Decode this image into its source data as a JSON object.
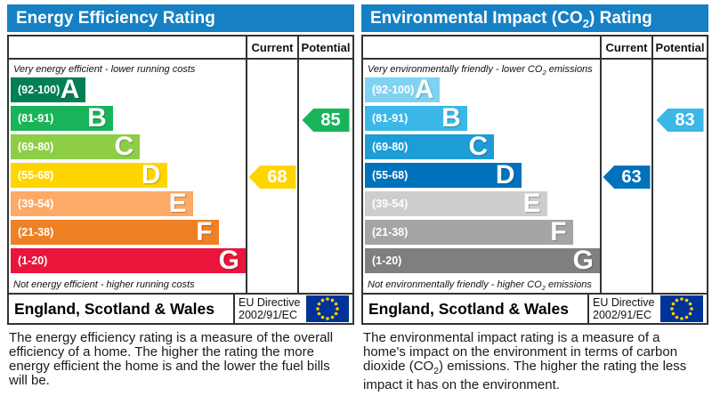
{
  "columns": {
    "current": "Current",
    "potential": "Potential"
  },
  "footer": {
    "region": "England, Scotland & Wales",
    "directive_line1": "EU Directive",
    "directive_line2": "2002/91/EC"
  },
  "colors": {
    "header_bg": "#1580c4",
    "border": "#333333",
    "eu_flag_bg": "#003399",
    "eu_star": "#ffcc00"
  },
  "chart_data": [
    {
      "type": "bar",
      "title": "Energy Efficiency Rating",
      "top_caption": "Very energy efficient - lower running costs",
      "bottom_caption": "Not energy efficient - higher running costs",
      "bands": [
        {
          "letter": "A",
          "range": "(92-100)",
          "min": 92,
          "max": 100,
          "color": "#008054",
          "width_pct": 32
        },
        {
          "letter": "B",
          "range": "(81-91)",
          "min": 81,
          "max": 91,
          "color": "#19b459",
          "width_pct": 43.5
        },
        {
          "letter": "C",
          "range": "(69-80)",
          "min": 69,
          "max": 80,
          "color": "#8dce46",
          "width_pct": 55
        },
        {
          "letter": "D",
          "range": "(55-68)",
          "min": 55,
          "max": 68,
          "color": "#ffd500",
          "width_pct": 66.5
        },
        {
          "letter": "E",
          "range": "(39-54)",
          "min": 39,
          "max": 54,
          "color": "#fcaa65",
          "width_pct": 77.5
        },
        {
          "letter": "F",
          "range": "(21-38)",
          "min": 21,
          "max": 38,
          "color": "#ef8023",
          "width_pct": 88.5
        },
        {
          "letter": "G",
          "range": "(1-20)",
          "min": 1,
          "max": 20,
          "color": "#e9153b",
          "width_pct": 100
        }
      ],
      "current": {
        "value": 68,
        "band": "D",
        "band_index": 3,
        "color": "#ffd500"
      },
      "potential": {
        "value": 85,
        "band": "B",
        "band_index": 1,
        "color": "#19b459"
      },
      "description": "The energy efficiency rating is a measure of the overall efficiency of a home. The higher the rating the more energy efficient the home is and the lower the fuel bills will be."
    },
    {
      "type": "bar",
      "title": "Environmental Impact (CO2) Rating",
      "title_parts": {
        "pre": "Environmental Impact (CO",
        "sub": "2",
        "post": ") Rating"
      },
      "top_caption_parts": {
        "pre": "Very environmentally friendly - lower CO",
        "sub": "2",
        "post": " emissions"
      },
      "bottom_caption_parts": {
        "pre": "Not environmentally friendly - higher CO",
        "sub": "2",
        "post": " emissions"
      },
      "bands": [
        {
          "letter": "A",
          "range": "(92-100)",
          "min": 92,
          "max": 100,
          "color": "#7ed3f2",
          "width_pct": 32
        },
        {
          "letter": "B",
          "range": "(81-91)",
          "min": 81,
          "max": 91,
          "color": "#3bb7e8",
          "width_pct": 43.5
        },
        {
          "letter": "C",
          "range": "(69-80)",
          "min": 69,
          "max": 80,
          "color": "#1d9cd6",
          "width_pct": 55
        },
        {
          "letter": "D",
          "range": "(55-68)",
          "min": 55,
          "max": 68,
          "color": "#0072bc",
          "width_pct": 66.5
        },
        {
          "letter": "E",
          "range": "(39-54)",
          "min": 39,
          "max": 54,
          "color": "#cdcdcd",
          "width_pct": 77.5
        },
        {
          "letter": "F",
          "range": "(21-38)",
          "min": 21,
          "max": 38,
          "color": "#a5a5a5",
          "width_pct": 88.5
        },
        {
          "letter": "G",
          "range": "(1-20)",
          "min": 1,
          "max": 20,
          "color": "#7f7f7f",
          "width_pct": 100
        }
      ],
      "current": {
        "value": 63,
        "band": "D",
        "band_index": 3,
        "color": "#0072bc"
      },
      "potential": {
        "value": 83,
        "band": "B",
        "band_index": 1,
        "color": "#3bb7e8"
      },
      "description_parts": {
        "pre": "The environmental impact rating is a measure of a home's impact on the environment in terms of carbon dioxide (CO",
        "sub": "2",
        "post": ") emissions. The higher the rating the less impact it has on the environment."
      }
    }
  ]
}
